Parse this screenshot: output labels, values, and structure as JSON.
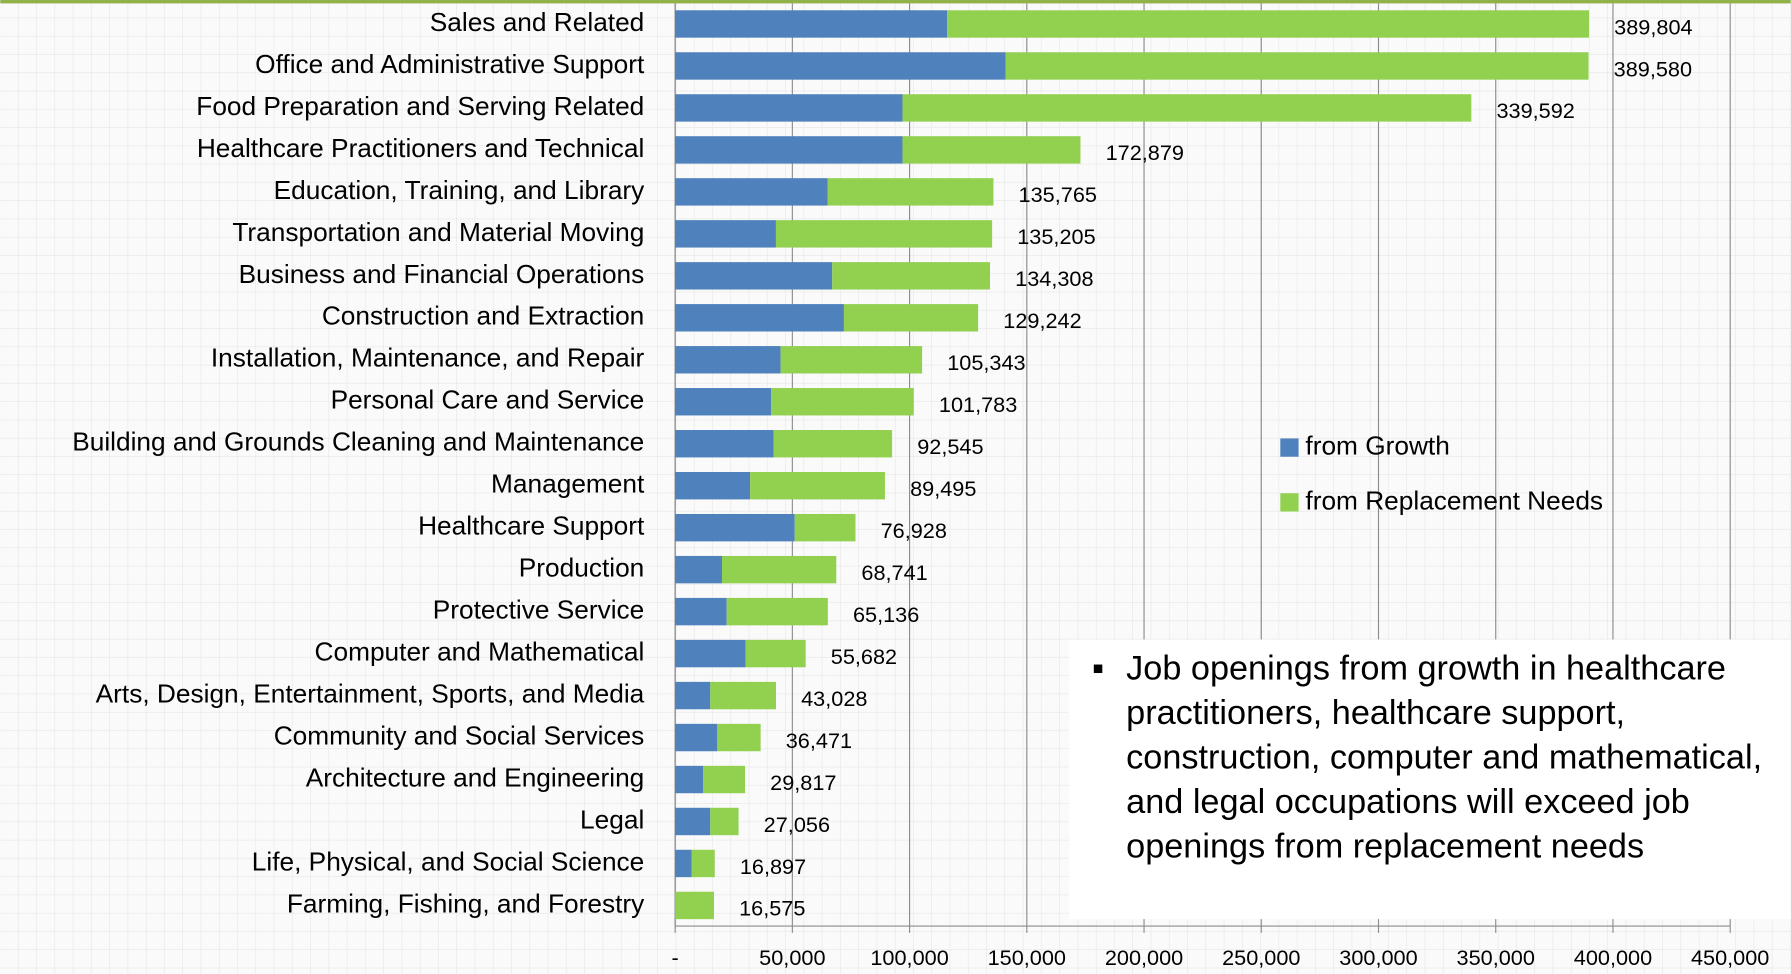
{
  "chart_data": {
    "type": "stacked-barh",
    "categories": [
      "Sales and Related",
      "Office and Administrative Support",
      "Food Preparation and Serving Related",
      "Healthcare Practitioners and Technical",
      "Education, Training, and Library",
      "Transportation and Material Moving",
      "Business and Financial Operations",
      "Construction and Extraction",
      "Installation, Maintenance, and Repair",
      "Personal Care and Service",
      "Building and Grounds Cleaning and Maintenance",
      "Management",
      "Healthcare Support",
      "Production",
      "Protective Service",
      "Computer and Mathematical",
      "Arts, Design, Entertainment, Sports, and Media",
      "Community and Social Services",
      "Architecture and Engineering",
      "Legal",
      "Life, Physical, and Social Science",
      "Farming, Fishing, and Forestry"
    ],
    "series": [
      {
        "name": "from Growth",
        "color": "#4f81bd",
        "values": [
          116000,
          141000,
          97000,
          97000,
          65000,
          43000,
          67000,
          72000,
          45000,
          41000,
          42000,
          32000,
          51000,
          20000,
          22000,
          30000,
          15000,
          18000,
          12000,
          15000,
          7000,
          0
        ]
      },
      {
        "name": "from Replacement Needs",
        "color": "#92d050",
        "values": [
          273804,
          248580,
          242592,
          75879,
          70765,
          92205,
          67308,
          57242,
          60343,
          60783,
          50545,
          57495,
          25928,
          48741,
          43136,
          25682,
          28028,
          18471,
          17817,
          12056,
          9897,
          16575
        ]
      }
    ],
    "totals": [
      389804,
      389580,
      339592,
      172879,
      135765,
      135205,
      134308,
      129242,
      105343,
      101783,
      92545,
      89495,
      76928,
      68741,
      65136,
      55682,
      43028,
      36471,
      29817,
      27056,
      16897,
      16575
    ],
    "total_labels": [
      "389,804",
      "389,580",
      "339,592",
      "172,879",
      "135,765",
      "135,205",
      "134,308",
      "129,242",
      "105,343",
      "101,783",
      "92,545",
      "89,495",
      "76,928",
      "68,741",
      "65,136",
      "55,682",
      "43,028",
      "36,471",
      "29,817",
      "27,056",
      "16,897",
      "16,575"
    ],
    "xlim": [
      0,
      450000
    ],
    "xticks": [
      {
        "value": 0,
        "label": "-"
      },
      {
        "value": 50000,
        "label": "50,000"
      },
      {
        "value": 100000,
        "label": "100,000"
      },
      {
        "value": 150000,
        "label": "150,000"
      },
      {
        "value": 200000,
        "label": "200,000"
      },
      {
        "value": 250000,
        "label": "250,000"
      },
      {
        "value": 300000,
        "label": "300,000"
      },
      {
        "value": 350000,
        "label": "350,000"
      },
      {
        "value": 400000,
        "label": "400,000"
      },
      {
        "value": 450000,
        "label": "450,000"
      }
    ],
    "grid": true,
    "annotation": "Job openings from growth in healthcare practitioners, healthcare support, construction, computer and mathematical, and legal occupations will exceed job openings from replacement needs"
  }
}
